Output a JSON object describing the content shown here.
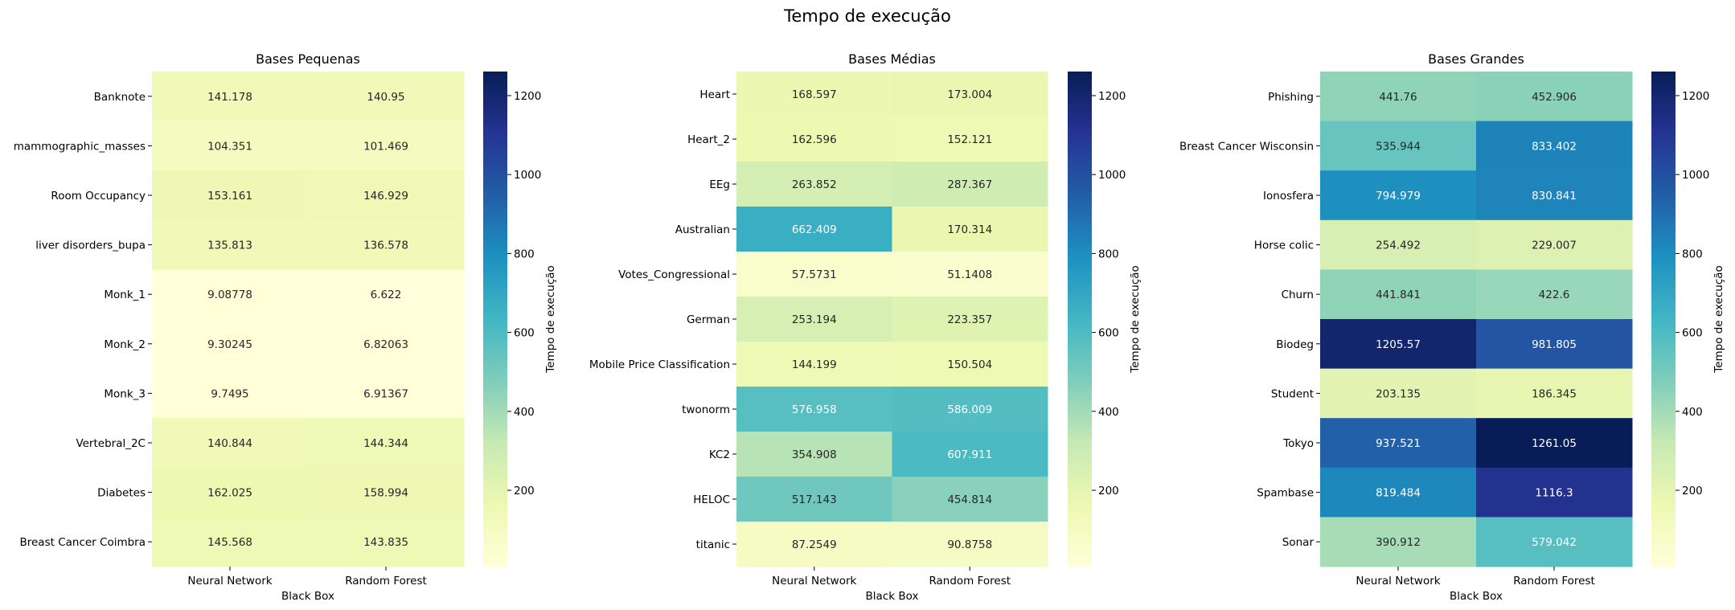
{
  "figure": {
    "suptitle": "Tempo de execução"
  },
  "colormap": {
    "name": "YlGnBu",
    "stops": [
      "#ffffd9",
      "#edf8b1",
      "#c7e9b4",
      "#7fcdbb",
      "#41b6c4",
      "#1d91c0",
      "#225ea8",
      "#253494",
      "#081d58"
    ],
    "vmin": 6.622,
    "vmax": 1261.05,
    "text_dark": "#262626",
    "text_light": "#ffffff"
  },
  "chart_data": [
    {
      "type": "heatmap",
      "title": "Bases Pequenas",
      "xlabel": "Black Box",
      "colorbar_label": "Tempo de execução",
      "colorbar_ticks": [
        200,
        400,
        600,
        800,
        1000,
        1200
      ],
      "columns": [
        "Neural Network",
        "Random Forest"
      ],
      "rows": [
        "Banknote",
        "mammographic_masses",
        "Room Occupancy",
        "liver disorders_bupa",
        "Monk_1",
        "Monk_2",
        "Monk_3",
        "Vertebral_2C",
        "Diabetes",
        "Breast Cancer Coimbra"
      ],
      "values": [
        [
          141.178,
          140.95
        ],
        [
          104.351,
          101.469
        ],
        [
          153.161,
          146.929
        ],
        [
          135.813,
          136.578
        ],
        [
          9.08778,
          6.622
        ],
        [
          9.30245,
          6.82063
        ],
        [
          9.7495,
          6.91367
        ],
        [
          140.844,
          144.344
        ],
        [
          162.025,
          158.994
        ],
        [
          145.568,
          143.835
        ]
      ],
      "labels": [
        [
          "141.178",
          "140.95"
        ],
        [
          "104.351",
          "101.469"
        ],
        [
          "153.161",
          "146.929"
        ],
        [
          "135.813",
          "136.578"
        ],
        [
          "9.08778",
          "6.622"
        ],
        [
          "9.30245",
          "6.82063"
        ],
        [
          "9.7495",
          "6.91367"
        ],
        [
          "140.844",
          "144.344"
        ],
        [
          "162.025",
          "158.994"
        ],
        [
          "145.568",
          "143.835"
        ]
      ]
    },
    {
      "type": "heatmap",
      "title": "Bases Médias",
      "xlabel": "Black Box",
      "colorbar_label": "Tempo de execução",
      "colorbar_ticks": [
        200,
        400,
        600,
        800,
        1000,
        1200
      ],
      "columns": [
        "Neural Network",
        "Random Forest"
      ],
      "rows": [
        "Heart",
        "Heart_2",
        "EEg",
        "Australian",
        "Votes_Congressional",
        "German",
        "Mobile Price Classification",
        "twonorm",
        "KC2",
        "HELOC",
        "titanic"
      ],
      "values": [
        [
          168.597,
          173.004
        ],
        [
          162.596,
          152.121
        ],
        [
          263.852,
          287.367
        ],
        [
          662.409,
          170.314
        ],
        [
          57.5731,
          51.1408
        ],
        [
          253.194,
          223.357
        ],
        [
          144.199,
          150.504
        ],
        [
          576.958,
          586.009
        ],
        [
          354.908,
          607.911
        ],
        [
          517.143,
          454.814
        ],
        [
          87.2549,
          90.8758
        ]
      ],
      "labels": [
        [
          "168.597",
          "173.004"
        ],
        [
          "162.596",
          "152.121"
        ],
        [
          "263.852",
          "287.367"
        ],
        [
          "662.409",
          "170.314"
        ],
        [
          "57.5731",
          "51.1408"
        ],
        [
          "253.194",
          "223.357"
        ],
        [
          "144.199",
          "150.504"
        ],
        [
          "576.958",
          "586.009"
        ],
        [
          "354.908",
          "607.911"
        ],
        [
          "517.143",
          "454.814"
        ],
        [
          "87.2549",
          "90.8758"
        ]
      ]
    },
    {
      "type": "heatmap",
      "title": "Bases Grandes",
      "xlabel": "Black Box",
      "colorbar_label": "Tempo de execução",
      "colorbar_ticks": [
        200,
        400,
        600,
        800,
        1000,
        1200
      ],
      "columns": [
        "Neural Network",
        "Random Forest"
      ],
      "rows": [
        "Phishing",
        "Breast Cancer Wisconsin",
        "Ionosfera",
        "Horse colic",
        "Churn",
        "Biodeg",
        "Student",
        "Tokyo",
        "Spambase",
        "Sonar"
      ],
      "values": [
        [
          441.76,
          452.906
        ],
        [
          535.944,
          833.402
        ],
        [
          794.979,
          830.841
        ],
        [
          254.492,
          229.007
        ],
        [
          441.841,
          422.6
        ],
        [
          1205.57,
          981.805
        ],
        [
          203.135,
          186.345
        ],
        [
          937.521,
          1261.05
        ],
        [
          819.484,
          1116.3
        ],
        [
          390.912,
          579.042
        ]
      ],
      "labels": [
        [
          "441.76",
          "452.906"
        ],
        [
          "535.944",
          "833.402"
        ],
        [
          "794.979",
          "830.841"
        ],
        [
          "254.492",
          "229.007"
        ],
        [
          "441.841",
          "422.6"
        ],
        [
          "1205.57",
          "981.805"
        ],
        [
          "203.135",
          "186.345"
        ],
        [
          "937.521",
          "1261.05"
        ],
        [
          "819.484",
          "1116.3"
        ],
        [
          "390.912",
          "579.042"
        ]
      ]
    }
  ]
}
